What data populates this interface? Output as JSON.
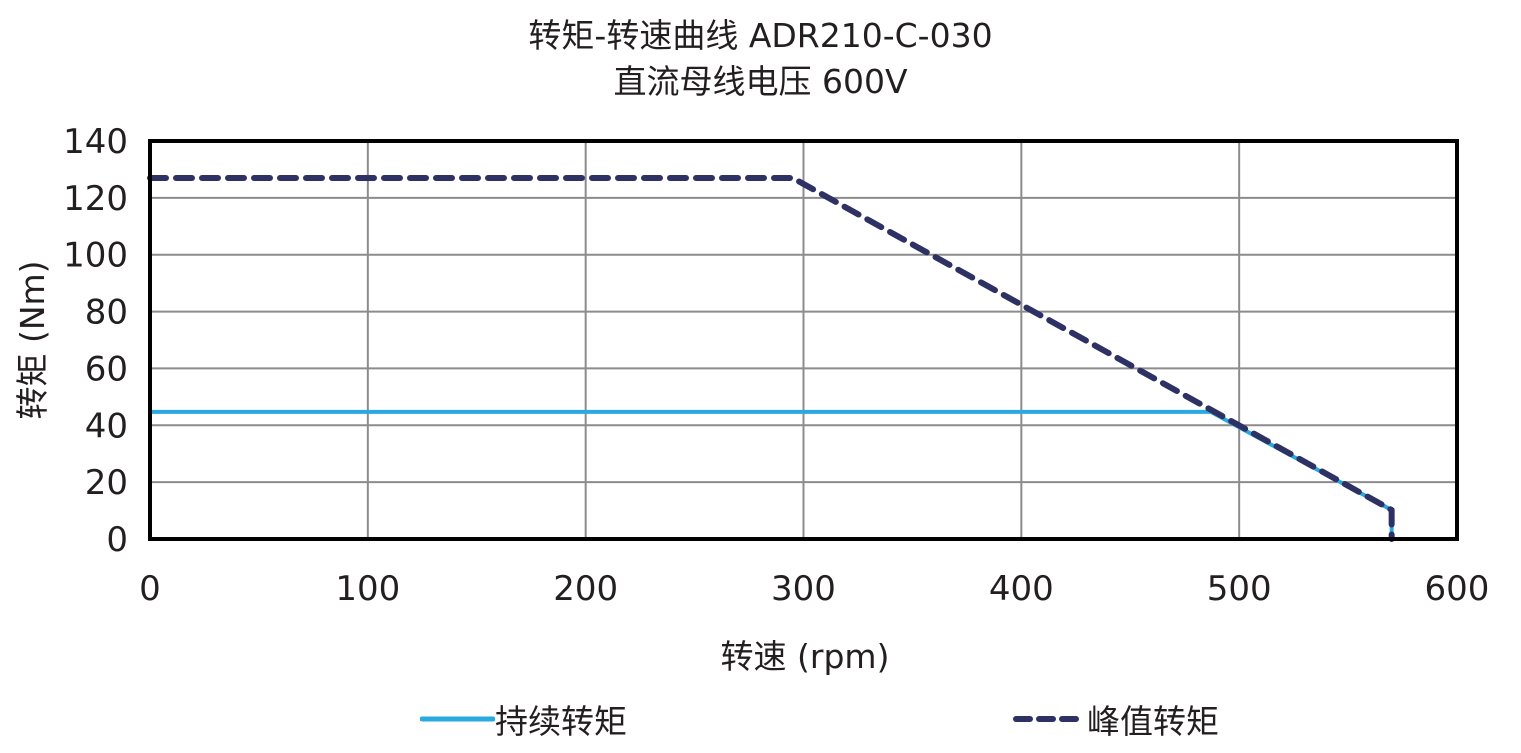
{
  "chart_data": {
    "type": "line",
    "title": "转矩-转速曲线 ADR210-C-030",
    "subtitle": "直流母线电压 600V",
    "xlabel": "转速 (rpm)",
    "ylabel": "转矩 (Nm)",
    "xlim": [
      0,
      600
    ],
    "ylim": [
      0,
      140
    ],
    "xticks": [
      0,
      100,
      200,
      300,
      400,
      500,
      600
    ],
    "yticks": [
      0,
      20,
      40,
      60,
      80,
      100,
      120,
      140
    ],
    "grid": true,
    "legend_position": "bottom",
    "series": [
      {
        "name": "持续转矩",
        "style": "solid",
        "color": "#29a9e0",
        "x": [
          0,
          487,
          570,
          570
        ],
        "y": [
          44.7,
          44.7,
          10.2,
          0
        ]
      },
      {
        "name": "峰值转矩",
        "style": "dashed",
        "color": "#2e3163",
        "x": [
          0,
          295,
          570,
          570
        ],
        "y": [
          127,
          127,
          10.2,
          0
        ]
      }
    ]
  }
}
